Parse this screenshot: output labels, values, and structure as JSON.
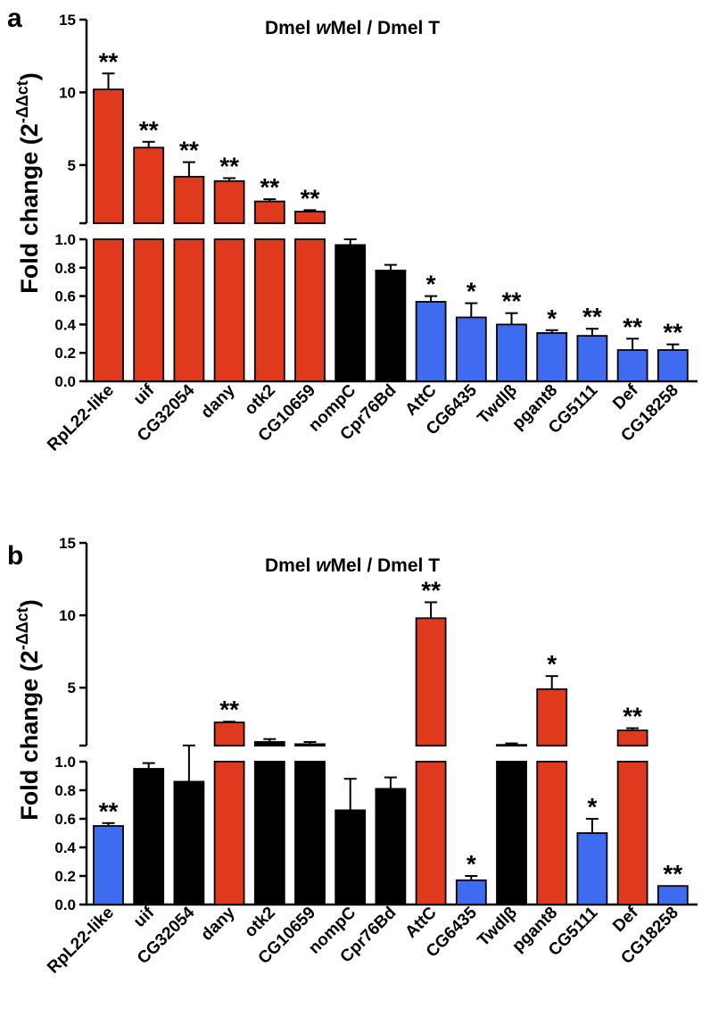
{
  "colors": {
    "up": "#e03a1e",
    "neutral": "#000000",
    "down": "#3f6bf0",
    "axis": "#000000"
  },
  "chart_data": [
    {
      "type": "bar",
      "panel_label": "a",
      "title_parts": [
        "Dmel ",
        "w",
        "Mel / Dmel T"
      ],
      "ylabel": "Fold change (2",
      "ylabel_sup": "-ΔΔct",
      "ylabel_close": ")",
      "axis_break": true,
      "lower_ylim": [
        0,
        1.0
      ],
      "lower_ticks": [
        "0.0",
        "0.2",
        "0.4",
        "0.6",
        "0.8",
        "1.0"
      ],
      "upper_ylim": [
        1.0,
        15
      ],
      "upper_ticks": [
        "5",
        "10",
        "15"
      ],
      "categories": [
        "RpL22-like",
        "uif",
        "CG32054",
        "dany",
        "otk2",
        "CG10659",
        "nompC",
        "Cpr76Bd",
        "AttC",
        "CG6435",
        "Twdlβ",
        "pgant8",
        "CG5111",
        "Def",
        "CG18258"
      ],
      "values": [
        10.2,
        6.2,
        4.2,
        3.9,
        2.5,
        1.8,
        0.96,
        0.78,
        0.56,
        0.45,
        0.4,
        0.34,
        0.32,
        0.22,
        0.22
      ],
      "errors": [
        1.1,
        0.4,
        1.0,
        0.2,
        0.15,
        0.1,
        0.04,
        0.04,
        0.04,
        0.1,
        0.08,
        0.02,
        0.05,
        0.08,
        0.04
      ],
      "groups": [
        "up",
        "up",
        "up",
        "up",
        "up",
        "up",
        "neutral",
        "neutral",
        "down",
        "down",
        "down",
        "down",
        "down",
        "down",
        "down"
      ],
      "significance": [
        "**",
        "**",
        "**",
        "**",
        "**",
        "**",
        "",
        "",
        "*",
        "*",
        "**",
        "*",
        "**",
        "**",
        "**"
      ]
    },
    {
      "type": "bar",
      "panel_label": "b",
      "title_parts": [
        "Dmel ",
        "w",
        "Mel / Dmel T"
      ],
      "ylabel": "Fold change (2",
      "ylabel_sup": "-ΔΔct",
      "ylabel_close": ")",
      "axis_break": true,
      "lower_ylim": [
        0,
        1.0
      ],
      "lower_ticks": [
        "0.0",
        "0.2",
        "0.4",
        "0.6",
        "0.8",
        "1.0"
      ],
      "upper_ylim": [
        1.0,
        15
      ],
      "upper_ticks": [
        "5",
        "10",
        "15"
      ],
      "categories": [
        "RpL22-like",
        "uif",
        "CG32054",
        "dany",
        "otk2",
        "CG10659",
        "nompC",
        "Cpr76Bd",
        "AttC",
        "CG6435",
        "Twdlβ",
        "pgant8",
        "CG5111",
        "Def",
        "CG18258"
      ],
      "values": [
        0.55,
        0.95,
        0.86,
        2.6,
        1.25,
        1.1,
        0.66,
        0.81,
        9.8,
        0.17,
        1.05,
        4.9,
        0.5,
        2.05,
        0.13
      ],
      "errors": [
        0.02,
        0.04,
        0.15,
        0.05,
        0.2,
        0.15,
        0.22,
        0.08,
        1.1,
        0.03,
        0.1,
        0.9,
        0.1,
        0.15,
        0.0
      ],
      "groups": [
        "down",
        "neutral",
        "neutral",
        "up",
        "neutral",
        "neutral",
        "neutral",
        "neutral",
        "up",
        "down",
        "neutral",
        "up",
        "down",
        "up",
        "down"
      ],
      "significance": [
        "**",
        "",
        "",
        "**",
        "",
        "",
        "",
        "",
        "**",
        "*",
        "",
        "*",
        "*",
        "**",
        "**"
      ]
    }
  ]
}
